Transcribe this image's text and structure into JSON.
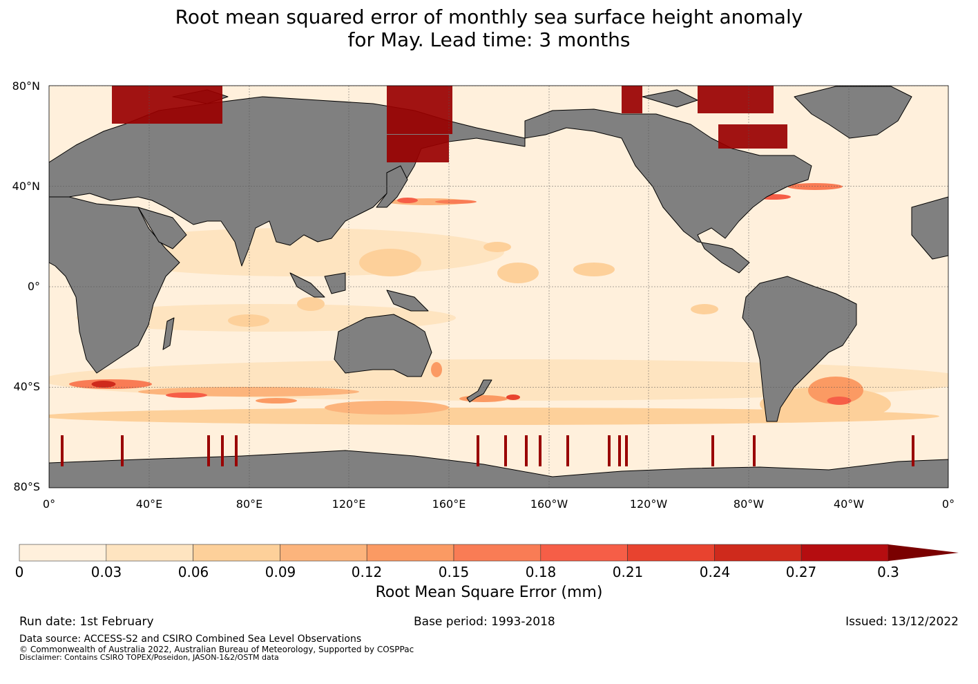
{
  "title": {
    "line1": "Root mean squared error of monthly sea surface height anomaly",
    "line2": "for May. Lead time: 3 months"
  },
  "map": {
    "lat_labels": [
      "80°N",
      "40°N",
      "0°",
      "40°S",
      "80°S"
    ],
    "lon_labels": [
      "0°",
      "40°E",
      "80°E",
      "120°E",
      "160°E",
      "160°W",
      "120°W",
      "80°W",
      "40°W",
      "0°"
    ],
    "land_color": "#808080",
    "coast_color": "#000000"
  },
  "colorbar": {
    "levels": [
      0,
      0.03,
      0.06,
      0.09,
      0.12,
      0.15,
      0.18,
      0.21,
      0.24,
      0.27,
      0.3
    ],
    "tick_labels": [
      "0",
      "0.03",
      "0.06",
      "0.09",
      "0.12",
      "0.15",
      "0.18",
      "0.21",
      "0.24",
      "0.27",
      "0.3"
    ],
    "colors": [
      "#fff0dc",
      "#fee4c0",
      "#fdd09a",
      "#fcb47c",
      "#fb9a63",
      "#f97c55",
      "#f65e47",
      "#e8432f",
      "#cf2a1c",
      "#b50d10",
      "#990000"
    ],
    "extend_color": "#7a0000",
    "label": "Root Mean Square Error (mm)"
  },
  "footer": {
    "run_date": "Run date: 1st February",
    "base_period": "Base period: 1993-2018",
    "issued": "Issued: 13/12/2022",
    "data_source": "Data source: ACCESS-S2 and CSIRO Combined Sea Level Observations",
    "copyright": "© Commonwealth of Australia 2022, Australian Bureau of Meteorology, Supported by COSPPac",
    "disclaimer": "Disclaimer: Contains CSIRO TOPEX/Poseidon, JASON-1&2/OSTM data"
  }
}
